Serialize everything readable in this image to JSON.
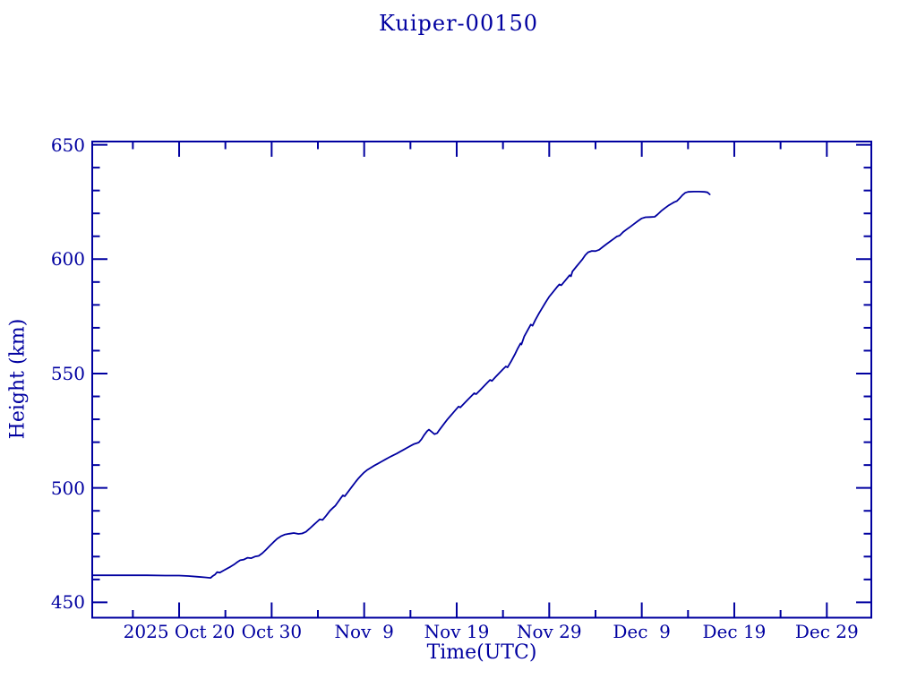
{
  "page": {
    "background_color": "#ffffff",
    "ink_color": "#0000a0"
  },
  "chart_data": {
    "type": "line",
    "title": "Kuiper-00150",
    "xlabel": "Time(UTC)",
    "ylabel": "Height (km)",
    "line_color": "#0000a0",
    "grid": false,
    "legend": null,
    "x_axis": {
      "unit": "days since 2025 Oct 20 00:00 UTC",
      "range": [
        -9.39,
        74.81
      ],
      "major_ticks": [
        {
          "d": 0,
          "label": "2025 Oct 20"
        },
        {
          "d": 10,
          "label": "Oct 30"
        },
        {
          "d": 20,
          "label": "Nov  9"
        },
        {
          "d": 30,
          "label": "Nov 19"
        },
        {
          "d": 40,
          "label": "Nov 29"
        },
        {
          "d": 50,
          "label": "Dec  9"
        },
        {
          "d": 60,
          "label": "Dec 19"
        },
        {
          "d": 70,
          "label": "Dec 29"
        }
      ],
      "minor_ticks": [
        -5,
        5,
        15,
        25,
        35,
        45,
        55,
        65
      ]
    },
    "y_axis": {
      "unit": "km",
      "range": [
        443.3,
        651.4
      ],
      "major_ticks": [
        {
          "v": 450,
          "label": "450"
        },
        {
          "v": 500,
          "label": "500"
        },
        {
          "v": 550,
          "label": "550"
        },
        {
          "v": 600,
          "label": "600"
        },
        {
          "v": 650,
          "label": "650"
        }
      ],
      "minor_ticks": [
        460,
        470,
        480,
        490,
        510,
        520,
        530,
        540,
        560,
        570,
        580,
        590,
        610,
        620,
        630,
        640
      ]
    },
    "series": [
      {
        "name": "height_km",
        "points": [
          [
            -9.39,
            461.8
          ],
          [
            -7.5,
            461.8
          ],
          [
            -5.5,
            461.8
          ],
          [
            -3.5,
            461.8
          ],
          [
            -1.5,
            461.7
          ],
          [
            0.0,
            461.7
          ],
          [
            1.0,
            461.5
          ],
          [
            2.0,
            461.2
          ],
          [
            2.8,
            460.9
          ],
          [
            3.4,
            460.7
          ],
          [
            3.6,
            461.4
          ],
          [
            3.9,
            462.2
          ],
          [
            4.1,
            463.2
          ],
          [
            4.4,
            463.0
          ],
          [
            4.8,
            463.9
          ],
          [
            5.2,
            464.8
          ],
          [
            5.6,
            465.7
          ],
          [
            6.0,
            466.7
          ],
          [
            6.3,
            467.6
          ],
          [
            6.6,
            468.4
          ],
          [
            7.0,
            468.7
          ],
          [
            7.4,
            469.5
          ],
          [
            7.8,
            469.3
          ],
          [
            8.2,
            470.0
          ],
          [
            8.6,
            470.3
          ],
          [
            9.0,
            471.5
          ],
          [
            9.4,
            473.0
          ],
          [
            9.8,
            474.7
          ],
          [
            10.2,
            476.3
          ],
          [
            10.6,
            477.8
          ],
          [
            11.0,
            478.9
          ],
          [
            11.4,
            479.6
          ],
          [
            11.9,
            480.0
          ],
          [
            12.4,
            480.3
          ],
          [
            12.9,
            479.9
          ],
          [
            13.3,
            480.1
          ],
          [
            13.7,
            480.8
          ],
          [
            14.1,
            482.2
          ],
          [
            14.5,
            483.7
          ],
          [
            14.9,
            485.2
          ],
          [
            15.2,
            486.3
          ],
          [
            15.5,
            486.0
          ],
          [
            15.9,
            487.9
          ],
          [
            16.3,
            490.0
          ],
          [
            16.6,
            491.2
          ],
          [
            16.9,
            492.3
          ],
          [
            17.2,
            494.0
          ],
          [
            17.5,
            495.7
          ],
          [
            17.7,
            496.8
          ],
          [
            17.9,
            496.4
          ],
          [
            18.2,
            498.0
          ],
          [
            18.5,
            499.6
          ],
          [
            18.8,
            501.2
          ],
          [
            19.1,
            502.8
          ],
          [
            19.4,
            504.3
          ],
          [
            19.7,
            505.6
          ],
          [
            20.0,
            506.8
          ],
          [
            20.3,
            507.8
          ],
          [
            20.7,
            508.8
          ],
          [
            21.1,
            509.8
          ],
          [
            21.5,
            510.7
          ],
          [
            21.9,
            511.6
          ],
          [
            22.3,
            512.5
          ],
          [
            22.7,
            513.4
          ],
          [
            23.1,
            514.2
          ],
          [
            23.5,
            515.0
          ],
          [
            23.9,
            515.9
          ],
          [
            24.3,
            516.8
          ],
          [
            24.7,
            517.7
          ],
          [
            25.1,
            518.6
          ],
          [
            25.4,
            519.2
          ],
          [
            25.7,
            519.6
          ],
          [
            25.9,
            519.9
          ],
          [
            26.2,
            521.3
          ],
          [
            26.5,
            523.2
          ],
          [
            26.8,
            524.8
          ],
          [
            27.0,
            525.5
          ],
          [
            27.3,
            524.5
          ],
          [
            27.6,
            523.5
          ],
          [
            27.9,
            524.0
          ],
          [
            28.1,
            525.2
          ],
          [
            28.4,
            526.8
          ],
          [
            28.7,
            528.4
          ],
          [
            29.0,
            530.0
          ],
          [
            29.3,
            531.4
          ],
          [
            29.6,
            532.8
          ],
          [
            29.9,
            534.2
          ],
          [
            30.2,
            535.6
          ],
          [
            30.4,
            535.2
          ],
          [
            30.8,
            536.9
          ],
          [
            31.2,
            538.6
          ],
          [
            31.6,
            540.2
          ],
          [
            31.9,
            541.4
          ],
          [
            32.1,
            541.0
          ],
          [
            32.5,
            542.6
          ],
          [
            32.9,
            544.3
          ],
          [
            33.3,
            546.0
          ],
          [
            33.6,
            547.2
          ],
          [
            33.8,
            546.8
          ],
          [
            34.2,
            548.5
          ],
          [
            34.6,
            550.2
          ],
          [
            35.0,
            551.9
          ],
          [
            35.3,
            553.1
          ],
          [
            35.5,
            552.7
          ],
          [
            35.9,
            555.5
          ],
          [
            36.3,
            558.5
          ],
          [
            36.6,
            561.0
          ],
          [
            36.9,
            563.2
          ],
          [
            37.0,
            562.7
          ],
          [
            37.3,
            566.2
          ],
          [
            37.7,
            569.2
          ],
          [
            38.0,
            571.4
          ],
          [
            38.2,
            570.9
          ],
          [
            38.5,
            573.4
          ],
          [
            38.9,
            576.4
          ],
          [
            39.2,
            578.4
          ],
          [
            39.6,
            581.1
          ],
          [
            40.0,
            583.6
          ],
          [
            40.4,
            585.6
          ],
          [
            40.8,
            587.6
          ],
          [
            41.1,
            589.0
          ],
          [
            41.3,
            588.6
          ],
          [
            41.8,
            591.0
          ],
          [
            42.2,
            593.0
          ],
          [
            42.35,
            592.5
          ],
          [
            42.5,
            594.6
          ],
          [
            42.9,
            596.6
          ],
          [
            43.3,
            598.5
          ],
          [
            43.6,
            600.0
          ],
          [
            43.9,
            601.8
          ],
          [
            44.2,
            603.0
          ],
          [
            44.6,
            603.6
          ],
          [
            45.0,
            603.5
          ],
          [
            45.4,
            604.1
          ],
          [
            45.8,
            605.4
          ],
          [
            46.2,
            606.6
          ],
          [
            46.6,
            607.8
          ],
          [
            47.0,
            609.0
          ],
          [
            47.3,
            609.9
          ],
          [
            47.6,
            610.3
          ],
          [
            48.0,
            611.9
          ],
          [
            48.4,
            613.1
          ],
          [
            48.8,
            614.3
          ],
          [
            49.2,
            615.5
          ],
          [
            49.6,
            616.7
          ],
          [
            50.0,
            617.8
          ],
          [
            50.4,
            618.3
          ],
          [
            50.9,
            618.4
          ],
          [
            51.4,
            618.5
          ],
          [
            51.7,
            619.5
          ],
          [
            52.1,
            621.0
          ],
          [
            52.5,
            622.3
          ],
          [
            52.9,
            623.5
          ],
          [
            53.2,
            624.2
          ],
          [
            53.5,
            624.9
          ],
          [
            53.8,
            625.4
          ],
          [
            54.1,
            626.6
          ],
          [
            54.4,
            628.0
          ],
          [
            54.7,
            629.0
          ],
          [
            55.0,
            629.4
          ],
          [
            55.6,
            629.5
          ],
          [
            56.2,
            629.5
          ],
          [
            56.8,
            629.4
          ],
          [
            57.1,
            629.2
          ],
          [
            57.35,
            628.3
          ]
        ]
      }
    ]
  }
}
